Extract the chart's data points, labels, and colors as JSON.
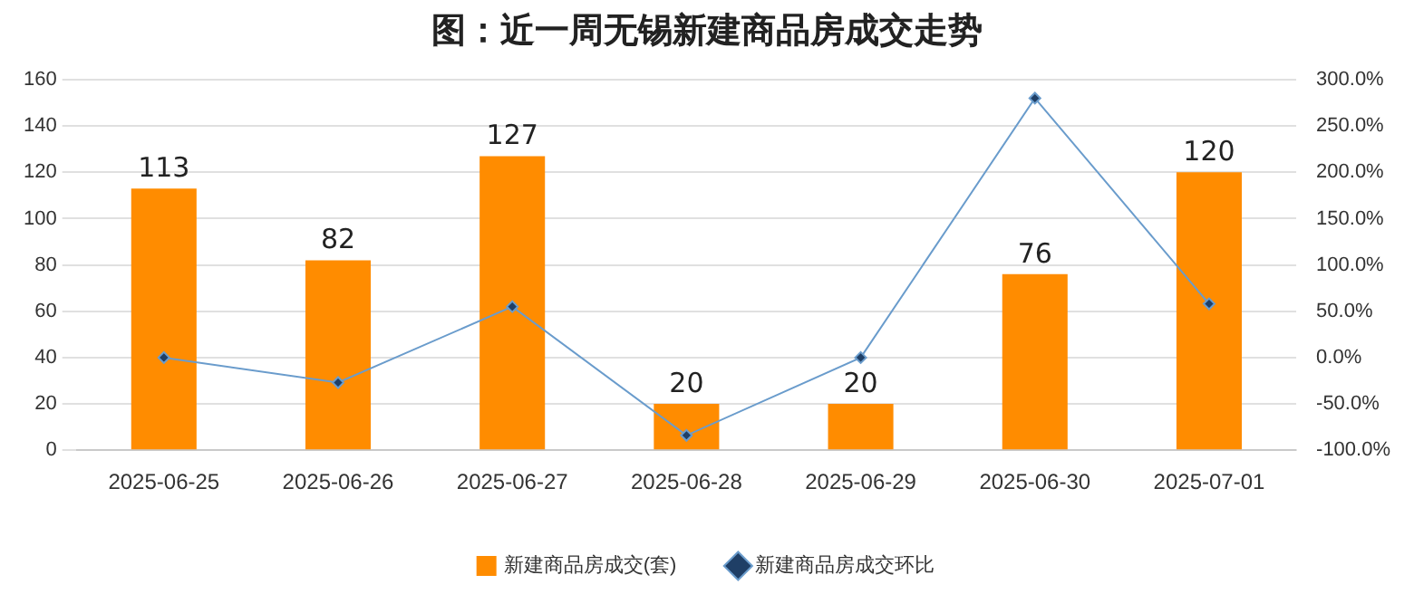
{
  "chart_data": {
    "type": "bar",
    "title": "图：近一周无锡新建商品房成交走势",
    "categories": [
      "2025-06-25",
      "2025-06-26",
      "2025-06-27",
      "2025-06-28",
      "2025-06-29",
      "2025-06-30",
      "2025-07-01"
    ],
    "series": [
      {
        "name": "新建商品房成交(套)",
        "color": "#ff8c00",
        "values": [
          113,
          82,
          127,
          20,
          20,
          76,
          120
        ],
        "value_labels": [
          "113",
          "82",
          "127",
          "20",
          "20",
          "76",
          "120"
        ]
      },
      {
        "name": "新建商品房成交环比",
        "type": "line",
        "axis": "y2",
        "color": "#6a9ccc",
        "marker": "diamond",
        "values": [
          0,
          -27,
          55,
          -84,
          0,
          280,
          58
        ]
      }
    ],
    "ylim": [
      0,
      160
    ],
    "yticks": [
      0,
      20,
      40,
      60,
      80,
      100,
      120,
      140,
      160
    ],
    "y2lim": [
      -100,
      300
    ],
    "y2ticks": [
      {
        "value": -100,
        "label": "-100.0%"
      },
      {
        "value": -50,
        "label": "-50.0%"
      },
      {
        "value": 0,
        "label": "0.0%"
      },
      {
        "value": 50,
        "label": "50.0%"
      },
      {
        "value": 100,
        "label": "100.0%"
      },
      {
        "value": 150,
        "label": "150.0%"
      },
      {
        "value": 200,
        "label": "200.0%"
      },
      {
        "value": 250,
        "label": "250.0%"
      },
      {
        "value": 300,
        "label": "300.0%"
      }
    ],
    "grid": "y",
    "legend": "bottom"
  }
}
